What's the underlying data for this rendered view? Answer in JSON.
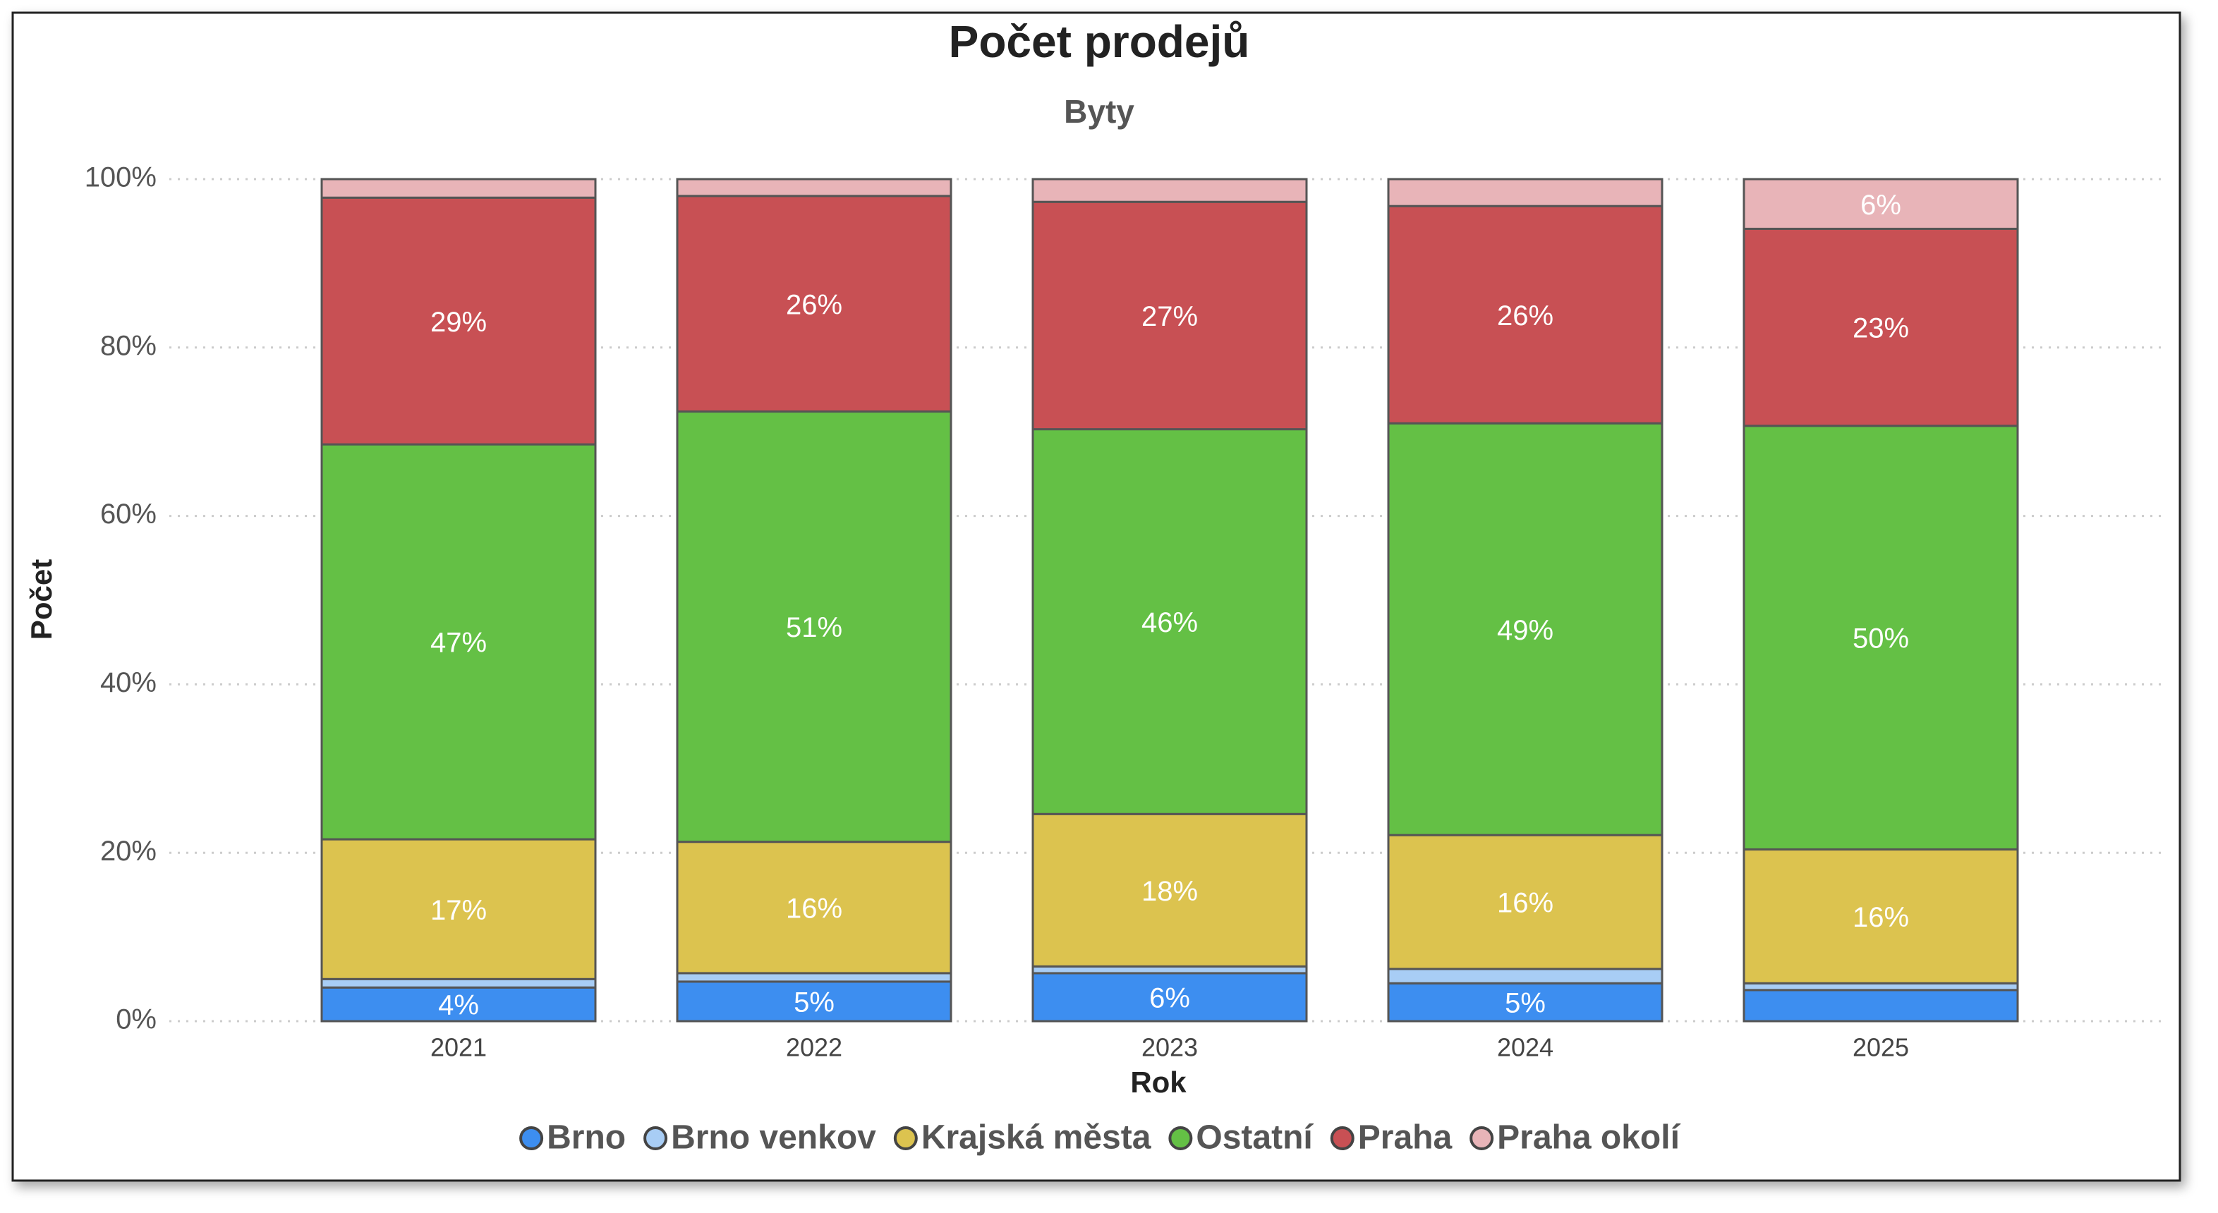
{
  "chart_data": {
    "type": "stacked_bar",
    "title": "Počet prodejů",
    "subtitle": "Byty",
    "x_label": "Rok",
    "y_label": "Počet",
    "categories": [
      "2021",
      "2022",
      "2023",
      "2024",
      "2025"
    ],
    "series": [
      {
        "name": "Brno",
        "color": "#3d8ef0",
        "values": [
          4.0,
          4.7,
          5.7,
          4.5,
          3.7
        ],
        "value_labels": [
          "4%",
          "5%",
          "6%",
          "5%",
          null
        ]
      },
      {
        "name": "Brno venkov",
        "color": "#a8cdf5",
        "values": [
          1.0,
          1.0,
          0.8,
          1.7,
          0.8
        ],
        "value_labels": [
          null,
          null,
          null,
          null,
          null
        ]
      },
      {
        "name": "Krajská města",
        "color": "#dcc34f",
        "values": [
          16.6,
          15.6,
          18.1,
          15.9,
          15.9
        ],
        "value_labels": [
          "17%",
          "16%",
          "18%",
          "16%",
          "16%"
        ]
      },
      {
        "name": "Ostatní",
        "color": "#64c045",
        "values": [
          46.9,
          51.1,
          45.7,
          48.9,
          50.3
        ],
        "value_labels": [
          "47%",
          "51%",
          "46%",
          "49%",
          "50%"
        ]
      },
      {
        "name": "Praha",
        "color": "#c85054",
        "values": [
          29.3,
          25.6,
          27.0,
          25.8,
          23.4
        ],
        "value_labels": [
          "29%",
          "26%",
          "27%",
          "26%",
          "23%"
        ]
      },
      {
        "name": "Praha okolí",
        "color": "#e8b4b8",
        "values": [
          2.2,
          2.0,
          2.7,
          3.2,
          5.9
        ],
        "value_labels": [
          null,
          null,
          null,
          null,
          "6%"
        ]
      }
    ],
    "ylim": [
      0,
      100
    ],
    "yticks": [
      {
        "value": 0,
        "label": "0%"
      },
      {
        "value": 20,
        "label": "20%"
      },
      {
        "value": 40,
        "label": "40%"
      },
      {
        "value": 60,
        "label": "60%"
      },
      {
        "value": 80,
        "label": "80%"
      },
      {
        "value": 100,
        "label": "100%"
      }
    ],
    "grid": true,
    "legend": "bottom"
  }
}
